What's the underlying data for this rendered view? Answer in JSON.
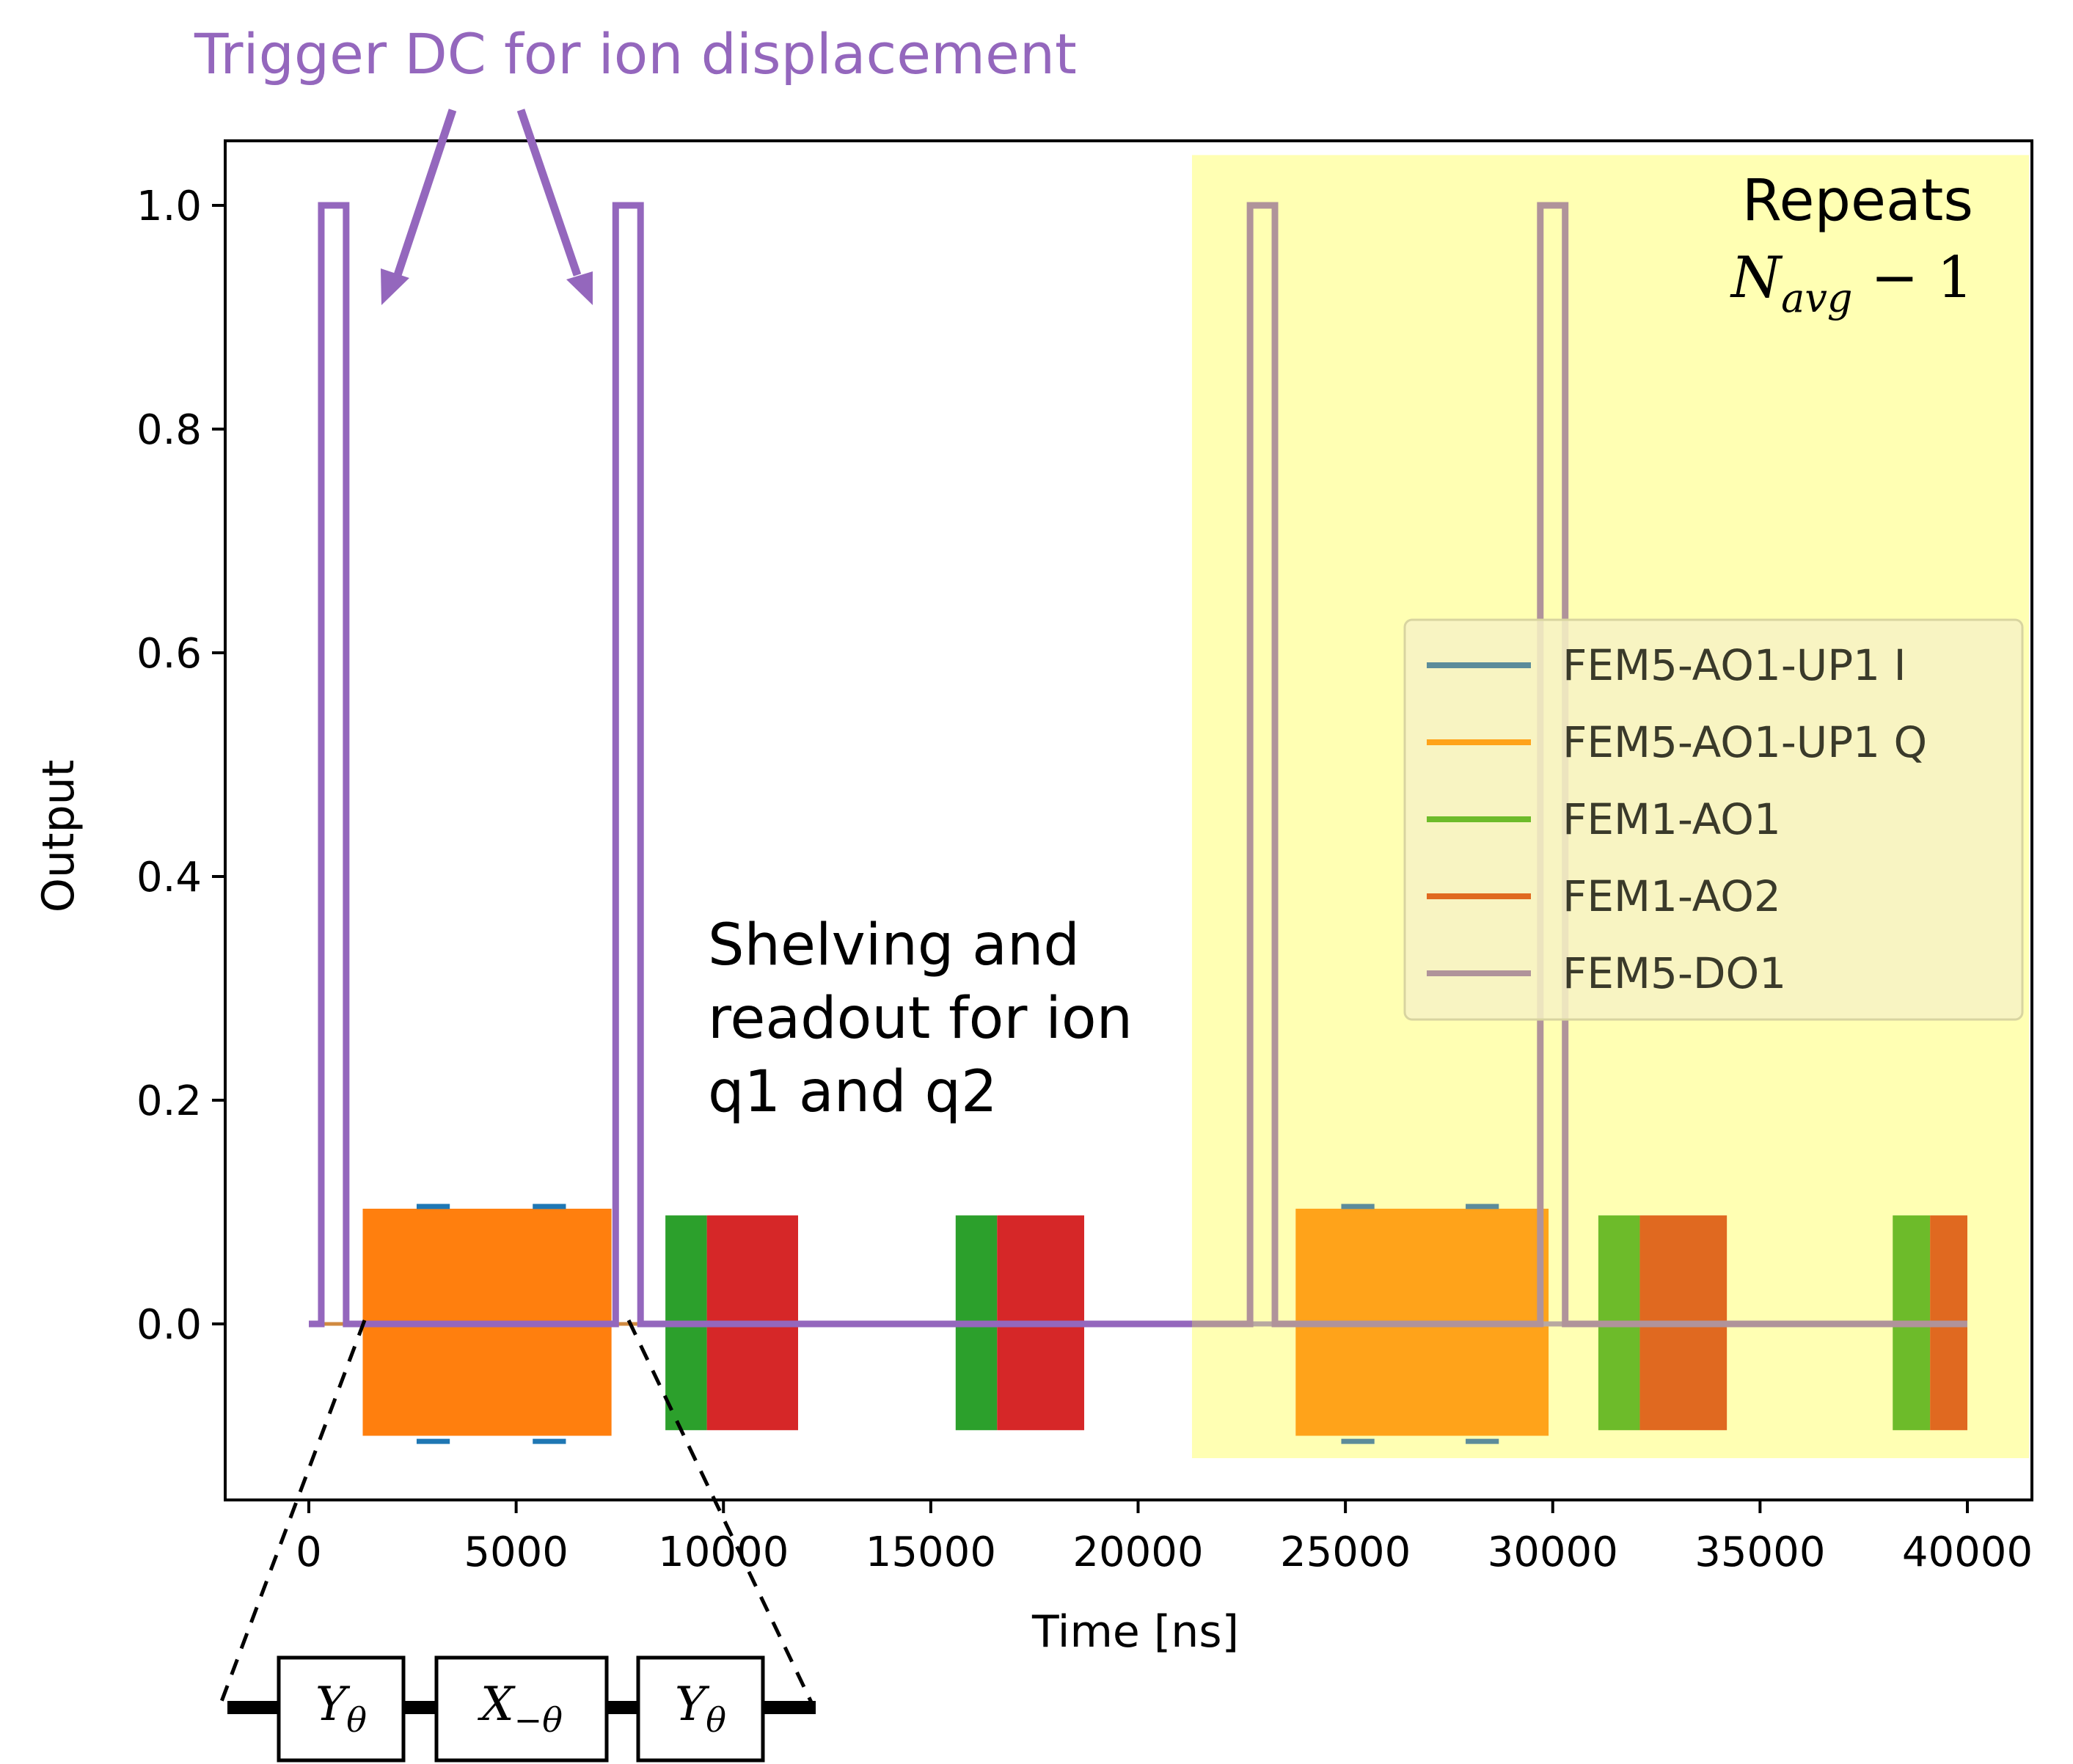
{
  "chart_data": {
    "type": "line",
    "title": "",
    "xlabel": "Time [ns]",
    "ylabel": "Output",
    "xlim": [
      -2000,
      41500
    ],
    "ylim": [
      -0.155,
      1.06
    ],
    "xticks": [
      0,
      5000,
      10000,
      15000,
      20000,
      25000,
      30000,
      35000,
      40000
    ],
    "xtick_labels": [
      "0",
      "5000",
      "10000",
      "15000",
      "20000",
      "25000",
      "30000",
      "35000",
      "40000"
    ],
    "yticks": [
      0.0,
      0.2,
      0.4,
      0.6,
      0.8,
      1.0
    ],
    "ytick_labels": [
      "0.0",
      "0.2",
      "0.4",
      "0.6",
      "0.8",
      "1.0"
    ],
    "grid": false,
    "legend_position": "center-right",
    "series": [
      {
        "name": "FEM5-AO1-UP1 I",
        "color": "#1f77b4",
        "repeat_color": "#5c8c9a",
        "segments": [
          [
            2600,
            3400,
            0.105
          ],
          [
            5400,
            6200,
            0.105
          ],
          [
            2600,
            3400,
            -0.105
          ],
          [
            5400,
            6200,
            -0.105
          ],
          [
            24900,
            25700,
            0.105
          ],
          [
            27900,
            28700,
            0.105
          ],
          [
            24900,
            25700,
            -0.105
          ],
          [
            27900,
            28700,
            -0.105
          ]
        ]
      },
      {
        "name": "FEM5-AO1-UP1 Q",
        "color": "#ff7f0e",
        "repeat_color": "#ffa31a",
        "blocks": [
          [
            1300,
            7300,
            -0.1,
            0.103
          ],
          [
            23800,
            29900,
            -0.1,
            0.103
          ]
        ]
      },
      {
        "name": "FEM1-AO1",
        "color": "#2ca02c",
        "repeat_color": "#6dbb2a",
        "blocks": [
          [
            8600,
            9600,
            -0.095,
            0.097
          ],
          [
            15600,
            16600,
            -0.095,
            0.097
          ],
          [
            31100,
            32100,
            -0.095,
            0.097
          ],
          [
            38200,
            39100,
            -0.095,
            0.097
          ]
        ]
      },
      {
        "name": "FEM1-AO2",
        "color": "#d62728",
        "repeat_color": "#e06920",
        "blocks": [
          [
            9600,
            11800,
            -0.095,
            0.097
          ],
          [
            16600,
            18700,
            -0.095,
            0.097
          ],
          [
            32100,
            34200,
            -0.095,
            0.097
          ],
          [
            39100,
            40000,
            -0.095,
            0.097
          ]
        ]
      },
      {
        "name": "FEM5-DO1",
        "color": "#9467bd",
        "repeat_color": "#b0939a",
        "points": [
          [
            0,
            0
          ],
          [
            300,
            0
          ],
          [
            300,
            1.0
          ],
          [
            900,
            1.0
          ],
          [
            900,
            0
          ],
          [
            7400,
            0
          ],
          [
            7400,
            1.0
          ],
          [
            8000,
            1.0
          ],
          [
            8000,
            0
          ],
          [
            21300,
            0
          ]
        ],
        "repeat_points": [
          [
            21300,
            0
          ],
          [
            22700,
            0
          ],
          [
            22700,
            1.0
          ],
          [
            23300,
            1.0
          ],
          [
            23300,
            0
          ],
          [
            29700,
            0
          ],
          [
            29700,
            1.0
          ],
          [
            30300,
            1.0
          ],
          [
            30300,
            0
          ],
          [
            40000,
            0
          ]
        ]
      }
    ],
    "highlight_region": {
      "x0": 21300,
      "x1": 41500,
      "y0": -0.12,
      "y1": 1.045,
      "color": "#ffffb3"
    },
    "annotations": {
      "trigger": "Trigger DC for ion displacement",
      "shelving_line1": "Shelving and",
      "shelving_line2": "readout for ion",
      "shelving_line3": "q1 and q2",
      "repeats_line1": "Repeats",
      "repeats_var": "N",
      "repeats_sub": "avg",
      "repeats_rest": " − 1"
    },
    "gate_sequence": {
      "gates": [
        {
          "main": "Y",
          "sub": "θ"
        },
        {
          "main": "X",
          "sub": "−θ"
        },
        {
          "main": "Y",
          "sub": "θ"
        }
      ]
    }
  },
  "colors": {
    "trigger_purple": "#9467bd",
    "repeat_yellow": "#ffffb3"
  }
}
